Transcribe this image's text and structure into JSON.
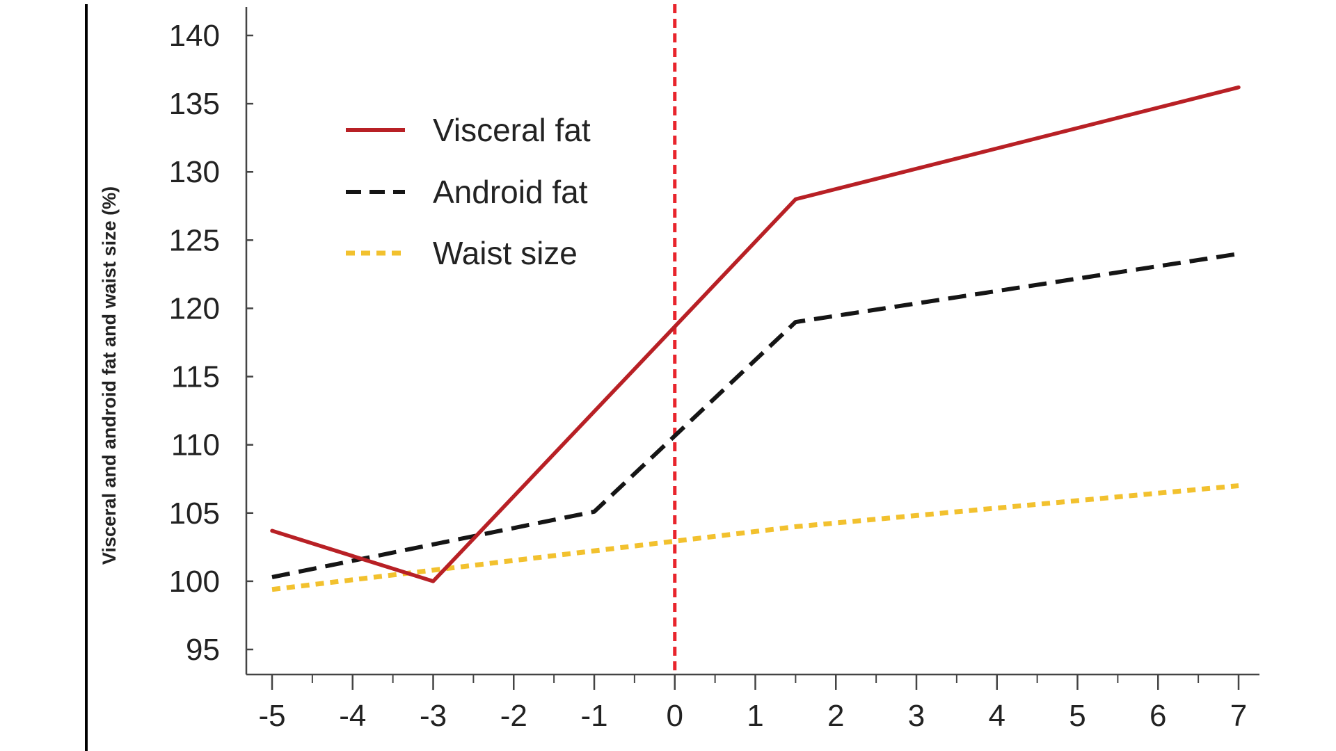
{
  "chart_data": {
    "type": "line",
    "title": "",
    "xlabel": "",
    "ylabel": "Visceral and android fat and waist size (%)",
    "xlim": [
      -5,
      7
    ],
    "ylim": [
      93,
      142
    ],
    "x_ticks": [
      -5,
      -4,
      -3,
      -2,
      -1,
      0,
      1,
      2,
      3,
      4,
      5,
      6,
      7
    ],
    "x_tick_labels": [
      "-5",
      "-4",
      "-3",
      "-2",
      "-1",
      "0",
      "1",
      "2",
      "3",
      "4",
      "5",
      "6",
      "7"
    ],
    "y_ticks": [
      95,
      100,
      105,
      110,
      115,
      120,
      125,
      130,
      135,
      140
    ],
    "y_tick_labels": [
      "95",
      "100",
      "105",
      "110",
      "115",
      "120",
      "125",
      "130",
      "135",
      "140"
    ],
    "grid": false,
    "legend_position": "top-left",
    "reference_line": {
      "x": 0,
      "color": "#e8242c",
      "style": "dashed"
    },
    "series": [
      {
        "name": "Visceral fat",
        "style": "solid",
        "color": "#b82025",
        "x": [
          -5,
          -3,
          1.5,
          7
        ],
        "y": [
          103.7,
          100.0,
          128.0,
          136.2
        ]
      },
      {
        "name": "Android fat",
        "style": "dashed",
        "color": "#151515",
        "x": [
          -5,
          -1,
          1.5,
          7
        ],
        "y": [
          100.3,
          105.1,
          119.0,
          124.0
        ]
      },
      {
        "name": "Waist size",
        "style": "dotted",
        "color": "#f2c12e",
        "x": [
          -5,
          1.5,
          7
        ],
        "y": [
          99.4,
          104.0,
          107.0
        ]
      }
    ]
  }
}
